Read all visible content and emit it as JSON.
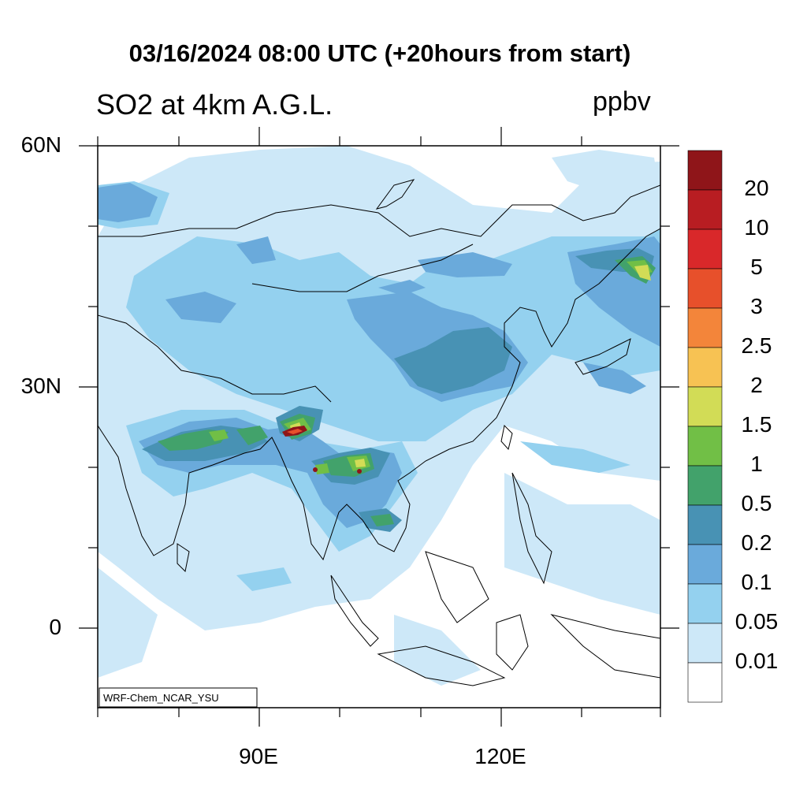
{
  "title": "03/16/2024 08:00 UTC (+20hours from start)",
  "subtitle": "SO2 at 4km A.G.L.",
  "units": "ppbv",
  "model_label": "WRF-Chem_NCAR_YSU",
  "lat_labels": [
    "60N",
    "30N",
    "0"
  ],
  "lon_labels": [
    "90E",
    "120E"
  ],
  "colorbar": {
    "levels": [
      "20",
      "10",
      "5",
      "3",
      "2.5",
      "2",
      "1.5",
      "1",
      "0.5",
      "0.2",
      "0.1",
      "0.05",
      "0.01"
    ],
    "colors": [
      "#8f1519",
      "#b81d22",
      "#d9282a",
      "#e7502b",
      "#f3853a",
      "#f7c253",
      "#d2dc56",
      "#71bf46",
      "#42a26b",
      "#4892b4",
      "#6aaadb",
      "#94d1ef",
      "#cde8f8",
      "#ffffff"
    ]
  },
  "map": {
    "colors": {
      "c001": "#cde8f8",
      "c005": "#94d1ef",
      "c01": "#6aaadb",
      "c02": "#4892b4",
      "c05": "#42a26b",
      "c1": "#71bf46",
      "c15": "#d2dc56",
      "c2": "#f7c253",
      "c3": "#e7502b",
      "c10": "#b81d22",
      "c20": "#8f1519"
    }
  }
}
